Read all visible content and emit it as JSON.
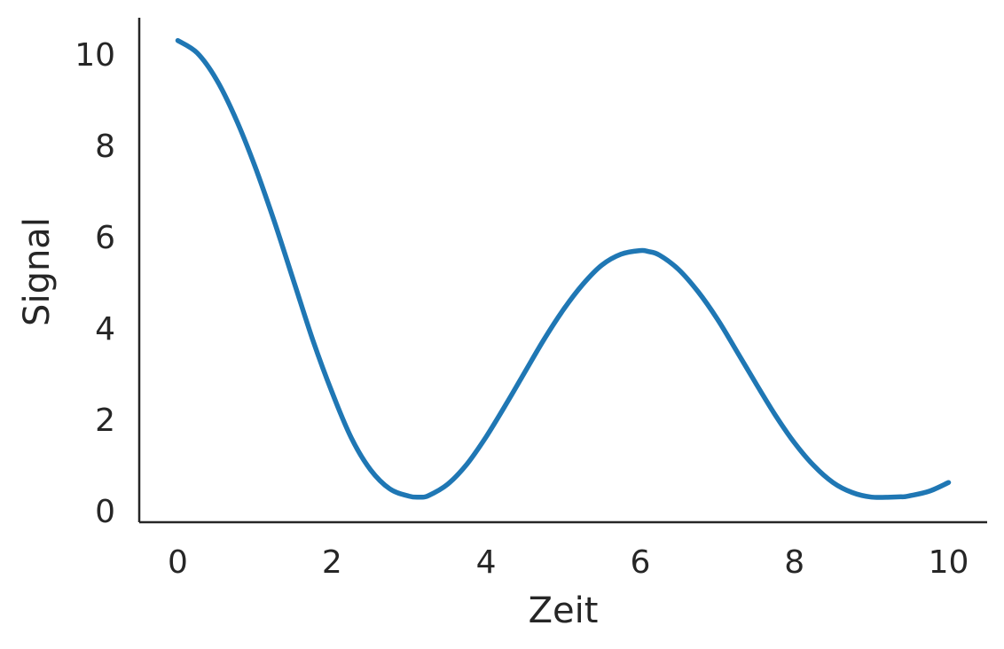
{
  "chart_data": {
    "type": "line",
    "xlabel": "Zeit",
    "ylabel": "Signal",
    "xlim": [
      -0.5,
      10.5
    ],
    "ylim": [
      -0.25,
      10.8
    ],
    "xticks": [
      0,
      2,
      4,
      6,
      8,
      10
    ],
    "yticks": [
      0,
      2,
      4,
      6,
      8,
      10
    ],
    "x_tick_labels": [
      "0",
      "2",
      "4",
      "6",
      "8",
      "10"
    ],
    "y_tick_labels": [
      "0",
      "2",
      "4",
      "6",
      "8",
      "10"
    ],
    "grid": false,
    "legend": "none",
    "series": [
      {
        "color": "#1f77b4",
        "x": [
          0.0,
          0.25,
          0.5,
          0.75,
          1.0,
          1.25,
          1.5,
          1.75,
          2.0,
          2.25,
          2.5,
          2.75,
          3.0,
          3.14,
          3.25,
          3.5,
          3.75,
          4.0,
          4.25,
          4.5,
          4.75,
          5.0,
          5.25,
          5.5,
          5.75,
          6.0,
          6.1,
          6.25,
          6.5,
          6.75,
          7.0,
          7.25,
          7.5,
          7.75,
          8.0,
          8.25,
          8.5,
          8.75,
          9.0,
          9.25,
          9.42,
          9.5,
          9.75,
          10.0
        ],
        "y": [
          10.3,
          10.03,
          9.45,
          8.6,
          7.55,
          6.35,
          5.05,
          3.75,
          2.6,
          1.6,
          0.9,
          0.48,
          0.32,
          0.3,
          0.33,
          0.58,
          1.02,
          1.62,
          2.31,
          3.03,
          3.75,
          4.4,
          4.95,
          5.38,
          5.62,
          5.7,
          5.68,
          5.6,
          5.28,
          4.8,
          4.2,
          3.5,
          2.79,
          2.1,
          1.49,
          0.99,
          0.62,
          0.4,
          0.3,
          0.3,
          0.31,
          0.33,
          0.43,
          0.62
        ]
      }
    ]
  }
}
